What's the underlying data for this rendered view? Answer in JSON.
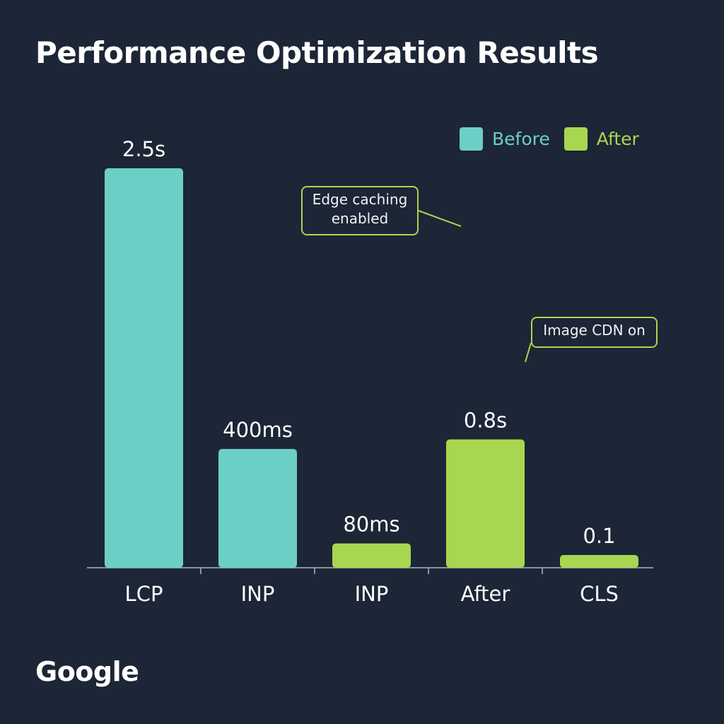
{
  "page": {
    "background": "#1c2636",
    "brand": "Google"
  },
  "colors": {
    "before": "#6ccfc6",
    "after": "#a9d650",
    "axis": "#8a93a0",
    "text": "#ffffff"
  },
  "chart_data": {
    "type": "bar",
    "title": "Performance Optimization Results",
    "xlabel": "",
    "ylabel": "",
    "legend_position": "top-right",
    "grid": false,
    "categories": [
      "LCP",
      "INP",
      "INP",
      "After",
      "CLS"
    ],
    "legend": [
      {
        "name": "Before",
        "color": "#6ccfc6"
      },
      {
        "name": "After",
        "color": "#a9d650"
      }
    ],
    "bars": [
      {
        "category": "LCP",
        "series": "Before",
        "label": "2.5s",
        "value": 2.5,
        "unit": "s"
      },
      {
        "category": "INP",
        "series": "Before",
        "label": "400ms",
        "value": 400,
        "unit": "ms"
      },
      {
        "category": "INP",
        "series": "After",
        "label": "80ms",
        "value": 80,
        "unit": "ms"
      },
      {
        "category": "After",
        "series": "After",
        "label": "0.8s",
        "value": 0.8,
        "unit": "s"
      },
      {
        "category": "CLS",
        "series": "After",
        "label": "0.1",
        "value": 0.1,
        "unit": ""
      }
    ],
    "annotations": [
      {
        "text": "Edge caching enabled",
        "target_category_index": 3
      },
      {
        "text": "Image CDN on",
        "target_category_index": 3
      }
    ]
  }
}
